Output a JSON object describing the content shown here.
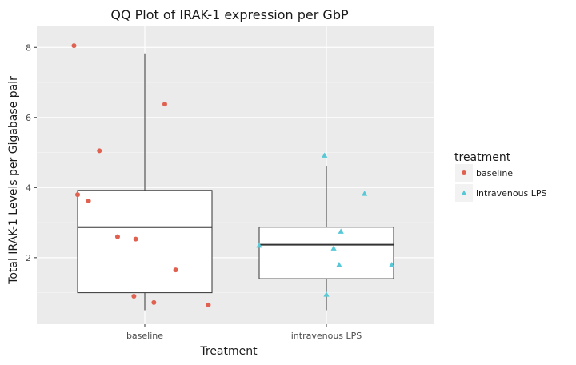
{
  "chart_data": {
    "type": "boxplot",
    "title": "QQ Plot of IRAK-1 expression per  GbP",
    "xlabel": "Treatment",
    "ylabel": "Total IRAK-1 Levels per Gigabase pair",
    "categories": [
      "baseline",
      "intravenous LPS"
    ],
    "ylim": [
      0.1,
      8.6
    ],
    "yticks": [
      2,
      4,
      6,
      8
    ],
    "grid": true,
    "background": "#EBEBEB",
    "boxes": [
      {
        "category": "baseline",
        "whisker_low": 0.5,
        "q1": 1.0,
        "median": 2.87,
        "q3": 3.92,
        "whisker_high": 7.83
      },
      {
        "category": "intravenous LPS",
        "whisker_low": 0.5,
        "q1": 1.4,
        "median": 2.37,
        "q3": 2.87,
        "whisker_high": 4.62
      }
    ],
    "series": [
      {
        "name": "baseline",
        "color": "#E06150",
        "marker": "circle",
        "category": "baseline",
        "points": [
          {
            "jitter": -0.39,
            "y": 8.05
          },
          {
            "jitter": -0.37,
            "y": 3.8
          },
          {
            "jitter": -0.31,
            "y": 3.62
          },
          {
            "jitter": -0.25,
            "y": 5.05
          },
          {
            "jitter": -0.15,
            "y": 2.6
          },
          {
            "jitter": -0.05,
            "y": 2.53
          },
          {
            "jitter": 0.11,
            "y": 6.38
          },
          {
            "jitter": 0.17,
            "y": 1.65
          },
          {
            "jitter": -0.06,
            "y": 0.9
          },
          {
            "jitter": 0.05,
            "y": 0.72
          },
          {
            "jitter": 0.35,
            "y": 0.65
          }
        ]
      },
      {
        "name": "intravenous LPS",
        "color": "#56C8D6",
        "marker": "triangle",
        "category": "intravenous LPS",
        "points": [
          {
            "jitter": -0.37,
            "y": 2.35
          },
          {
            "jitter": -0.01,
            "y": 4.92
          },
          {
            "jitter": 0.0,
            "y": 0.95
          },
          {
            "jitter": 0.04,
            "y": 2.27
          },
          {
            "jitter": 0.07,
            "y": 1.8
          },
          {
            "jitter": 0.08,
            "y": 2.75
          },
          {
            "jitter": 0.21,
            "y": 3.83
          },
          {
            "jitter": 0.36,
            "y": 1.8
          }
        ]
      }
    ],
    "legend": {
      "title": "treatment",
      "position": "right",
      "entries": [
        "baseline",
        "intravenous LPS"
      ]
    }
  }
}
